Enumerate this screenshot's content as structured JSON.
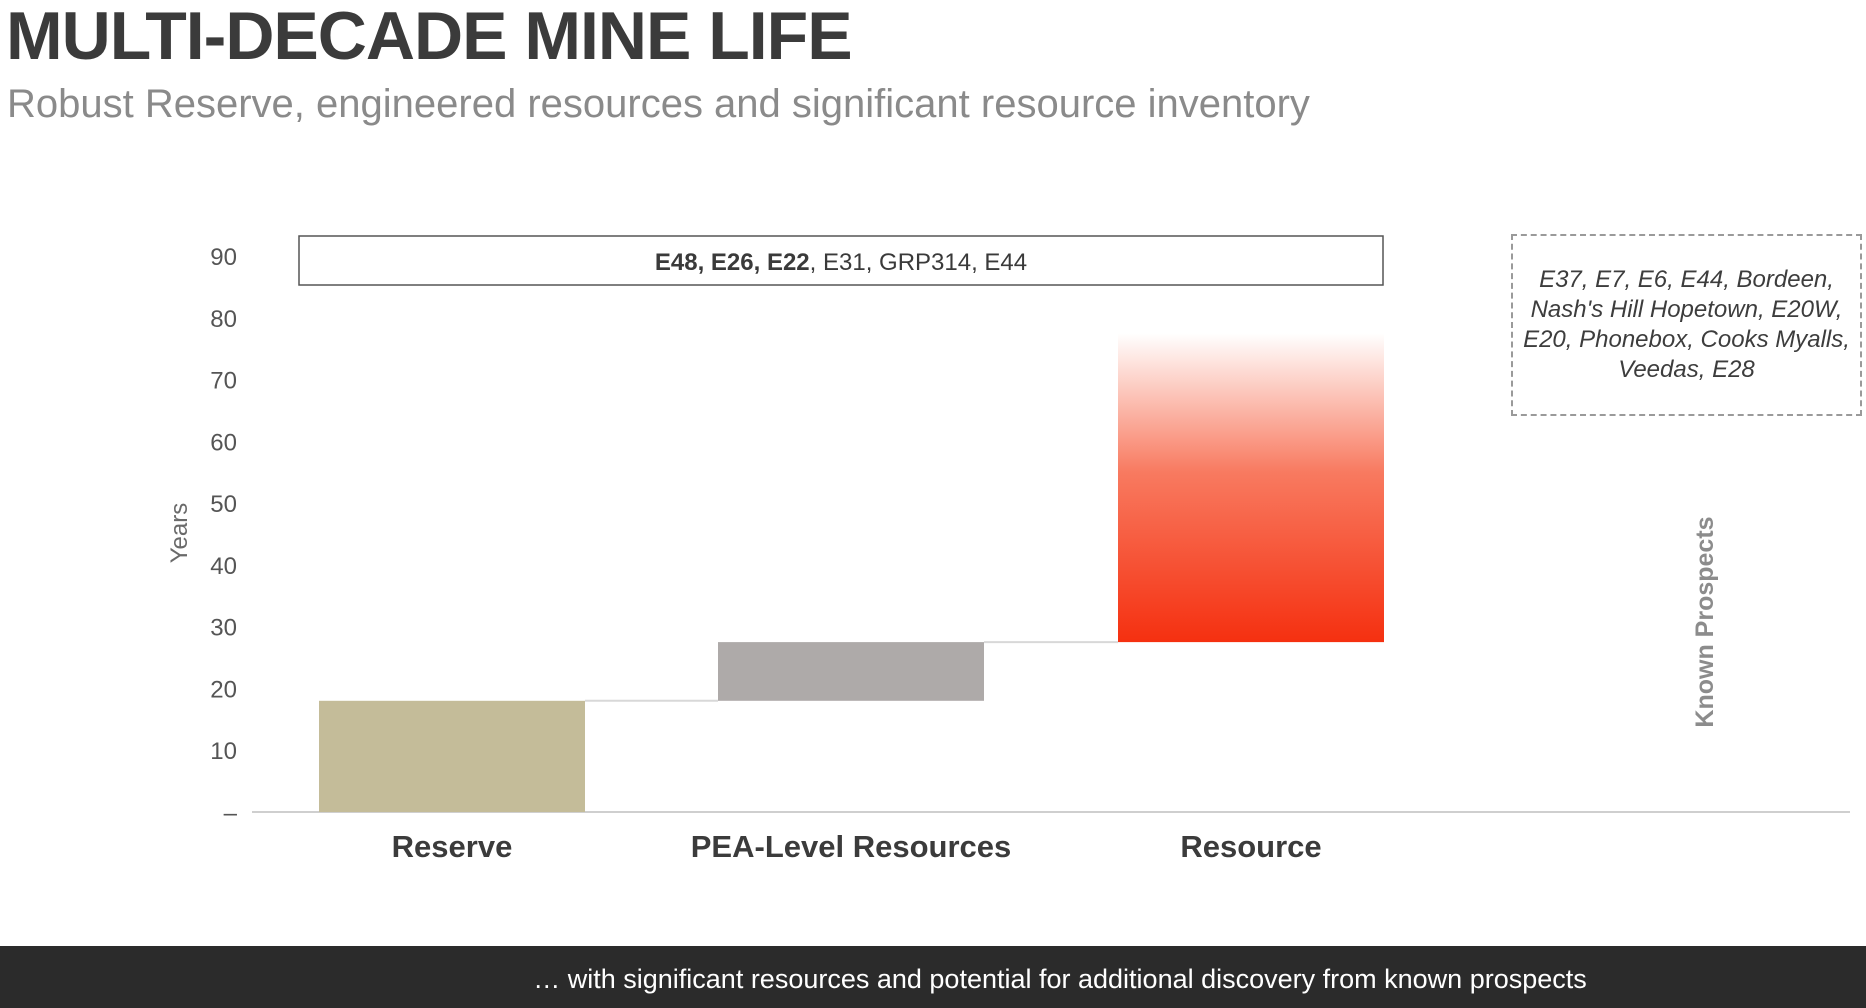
{
  "header": {
    "title": "MULTI-DECADE MINE LIFE",
    "subtitle": "Robust Reserve, engineered resources and significant resource inventory"
  },
  "colors": {
    "reserve": "#c4bc99",
    "pea": "#aeaaa9",
    "resource_bottom": "#f53010",
    "resource_top": "#ffffff",
    "footer_bg": "#2b2b2b"
  },
  "chart_data": {
    "type": "bar",
    "ylabel": "Years",
    "xlabel": "",
    "ylim": [
      0,
      90
    ],
    "yticks": [
      {
        "value": 0,
        "label": "–"
      },
      {
        "value": 10,
        "label": "10"
      },
      {
        "value": 20,
        "label": "20"
      },
      {
        "value": 30,
        "label": "30"
      },
      {
        "value": 40,
        "label": "40"
      },
      {
        "value": 50,
        "label": "50"
      },
      {
        "value": 60,
        "label": "60"
      },
      {
        "value": 70,
        "label": "70"
      },
      {
        "value": 80,
        "label": "80"
      },
      {
        "value": 90,
        "label": "90"
      }
    ],
    "categories": [
      "Reserve",
      "PEA-Level Resources",
      "Resource"
    ],
    "bars": [
      {
        "category": "Reserve",
        "start": 0,
        "end": 18,
        "style": "reserve"
      },
      {
        "category": "PEA-Level Resources",
        "start": 18,
        "end": 27.5,
        "style": "pea"
      },
      {
        "category": "Resource",
        "start": 27.5,
        "end": 77.5,
        "style": "gradient"
      }
    ],
    "top_banner": [
      {
        "text": "E48, E26, E22",
        "bold": true
      },
      {
        "text": ", E31, GRP314, E44",
        "bold": false
      }
    ]
  },
  "prospects": {
    "list": "E37, E7, E6, E44, Bordeen, Nash's Hill Hopetown, E20W, E20, Phonebox, Cooks Myalls, Veedas, E28",
    "vertical_label": "Known Prospects"
  },
  "footer": {
    "text": "… with significant resources and potential for additional discovery from known prospects"
  }
}
